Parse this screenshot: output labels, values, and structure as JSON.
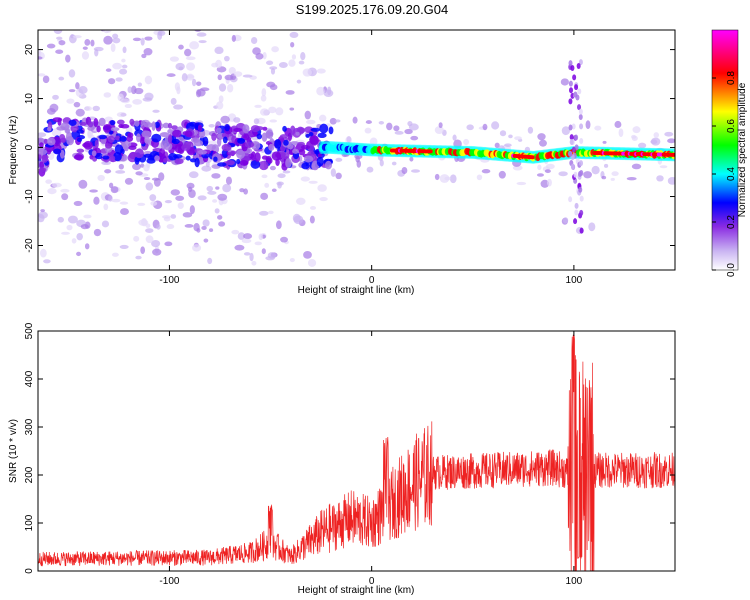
{
  "title": "S199.2025.176.09.20.G04",
  "chart_data": [
    {
      "type": "heatmap",
      "xlabel": "Height of straight line (km)",
      "ylabel": "Frequency (Hz)",
      "xlim": [
        -165,
        150
      ],
      "ylim": [
        -25,
        24
      ],
      "x_ticks": [
        -100,
        0,
        100
      ],
      "y_ticks": [
        -20,
        -10,
        0,
        10,
        20
      ],
      "colorbar": {
        "label": "Normalized spectral amplitude",
        "range": [
          0,
          1
        ],
        "ticks": [
          0.0,
          0.2,
          0.4,
          0.6,
          0.8
        ],
        "colormap": [
          "#ffffff",
          "#8a2be2",
          "#0000ff",
          "#00ffff",
          "#00ff00",
          "#ffff00",
          "#ff0000",
          "#ff00ff"
        ]
      },
      "ridge": [
        {
          "x": -160,
          "f": 2
        },
        {
          "x": -100,
          "f": 1
        },
        {
          "x": -50,
          "f": 0
        },
        {
          "x": -20,
          "f": 0
        },
        {
          "x": 0,
          "f": -0.5
        },
        {
          "x": 50,
          "f": -1
        },
        {
          "x": 80,
          "f": -2
        },
        {
          "x": 100,
          "f": -1
        },
        {
          "x": 150,
          "f": -1.5
        }
      ]
    },
    {
      "type": "line",
      "xlabel": "Height of straight line (km)",
      "ylabel": "SNR (10 * v/v)",
      "xlim": [
        -165,
        150
      ],
      "ylim": [
        0,
        500
      ],
      "x_ticks": [
        -100,
        0,
        100
      ],
      "y_ticks": [
        0,
        100,
        200,
        300,
        400,
        500
      ],
      "color": "#ee2222",
      "envelope": [
        {
          "x": -165,
          "y": 25
        },
        {
          "x": -80,
          "y": 28
        },
        {
          "x": -60,
          "y": 38
        },
        {
          "x": -50,
          "y": 60
        },
        {
          "x": -40,
          "y": 30
        },
        {
          "x": -25,
          "y": 80
        },
        {
          "x": -10,
          "y": 110
        },
        {
          "x": 0,
          "y": 100
        },
        {
          "x": 10,
          "y": 140
        },
        {
          "x": 20,
          "y": 180
        },
        {
          "x": 30,
          "y": 205
        },
        {
          "x": 60,
          "y": 210
        },
        {
          "x": 90,
          "y": 215
        },
        {
          "x": 95,
          "y": 210
        },
        {
          "x": 100,
          "y": 190
        },
        {
          "x": 110,
          "y": 210
        },
        {
          "x": 150,
          "y": 210
        }
      ],
      "spikes": [
        {
          "x": -50,
          "y": 140
        },
        {
          "x": 7,
          "y": 280
        },
        {
          "x": 100,
          "y": 500
        },
        {
          "x": 103,
          "y": 30
        },
        {
          "x": 108,
          "y": 410
        }
      ]
    }
  ]
}
